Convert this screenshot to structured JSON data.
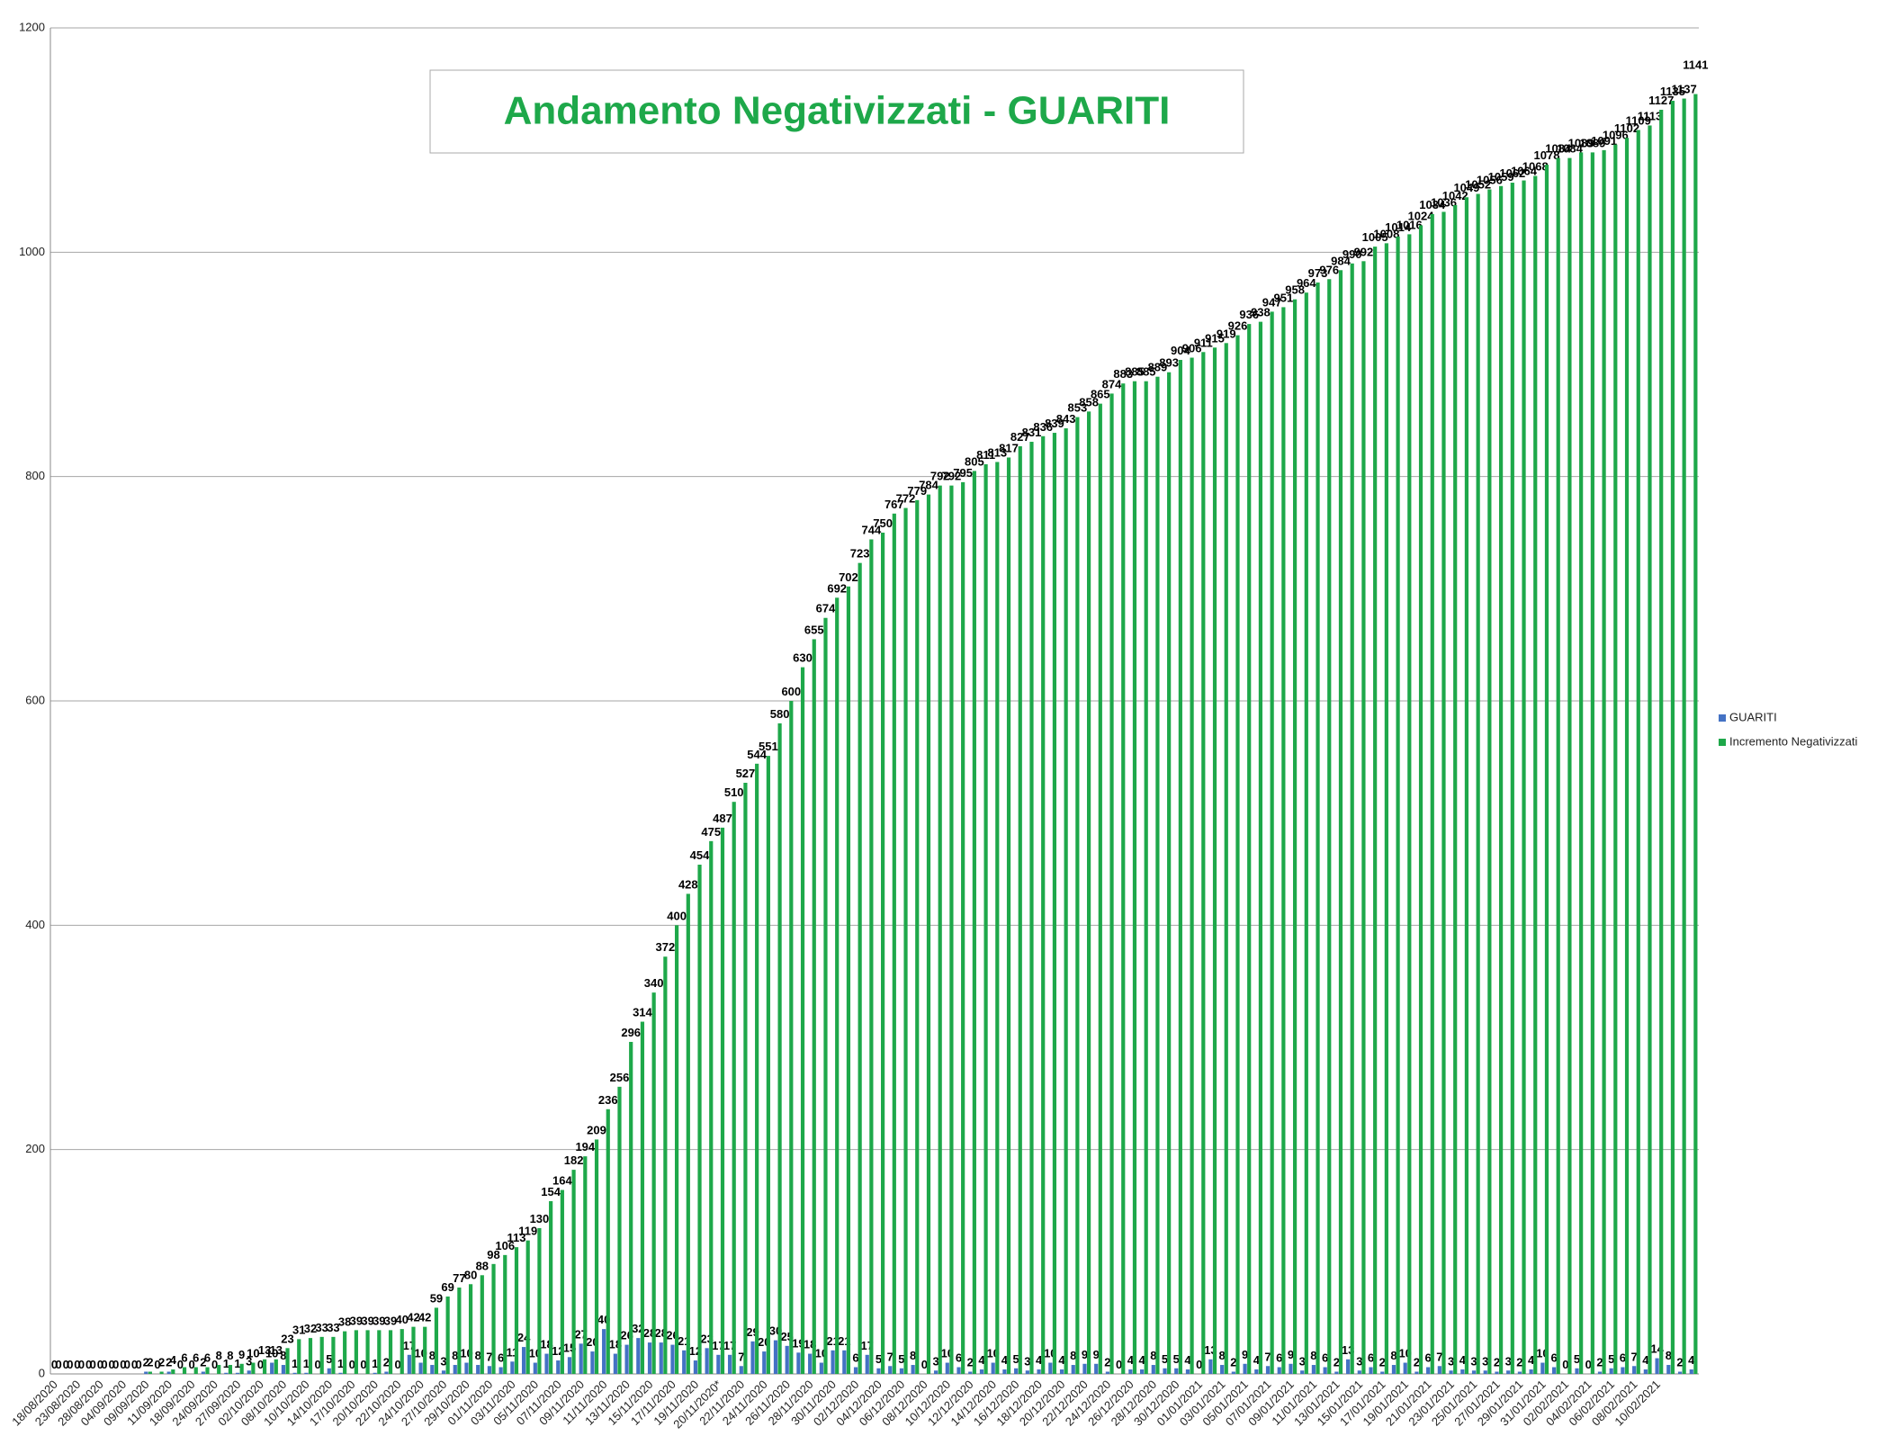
{
  "chart_data": {
    "type": "bar",
    "title": "Andamento Negativizzati - GUARITI",
    "categories": [
      "18/08/2020",
      null,
      "23/08/2020",
      null,
      "28/08/2020",
      null,
      "04/09/2020",
      null,
      "09/09/2020",
      null,
      "11/09/2020",
      null,
      "18/09/2020",
      null,
      "24/09/2020",
      null,
      "27/09/2020",
      null,
      "02/10/2020",
      null,
      "08/10/2020",
      null,
      "10/10/2020",
      null,
      "14/10/2020",
      null,
      "17/10/2020",
      null,
      "20/10/2020",
      null,
      "22/10/2020",
      null,
      "24/10/2020",
      null,
      "27/10/2020",
      null,
      "29/10/2020",
      null,
      "01/11/2020",
      null,
      "03/11/2020",
      null,
      "05/11/2020",
      null,
      "07/11/2020",
      null,
      "09/11/2020",
      null,
      "11/11/2020",
      null,
      "13/11/2020",
      null,
      "15/11/2020",
      null,
      "17/11/2020",
      null,
      "19/11/2020",
      null,
      "20/11/2020*",
      null,
      "22/11/2020",
      null,
      "24/11/2020",
      null,
      "26/11/2020",
      null,
      "28/11/2020",
      null,
      "30/11/2020",
      null,
      "02/12/2020",
      null,
      "04/12/2020",
      null,
      "06/12/2020",
      null,
      "08/12/2020",
      null,
      "10/12/2020",
      null,
      "12/12/2020",
      null,
      "14/12/2020",
      null,
      "16/12/2020",
      null,
      "18/12/2020",
      null,
      "20/12/2020",
      null,
      "22/12/2020",
      null,
      "24/12/2020",
      null,
      "26/12/2020",
      null,
      "28/12/2020",
      null,
      "30/12/2020",
      null,
      "01/01/2021",
      null,
      "03/01/2021",
      null,
      "05/01/2021",
      null,
      "07/01/2021",
      null,
      "09/01/2021",
      null,
      "11/01/2021",
      null,
      "13/01/2021",
      null,
      "15/01/2021",
      null,
      "17/01/2021",
      null,
      "19/01/2021",
      null,
      "21/01/2021",
      null,
      "23/01/2021",
      null,
      "25/01/2021",
      null,
      "27/01/2021",
      null,
      "29/01/2021",
      null,
      "31/01/2021",
      null,
      "02/02/2021",
      null,
      "04/02/2021",
      null,
      "06/02/2021",
      null,
      "08/02/2021",
      null,
      "10/02/2021",
      null,
      null,
      null
    ],
    "series": [
      {
        "name": "GUARITI",
        "color": "#4472c4",
        "values": [
          0,
          0,
          0,
          0,
          0,
          0,
          0,
          0,
          2,
          0,
          2,
          0,
          0,
          2,
          0,
          1,
          1,
          3,
          0,
          10,
          8,
          1,
          1,
          0,
          5,
          1,
          0,
          0,
          1,
          2,
          0,
          17,
          10,
          8,
          3,
          8,
          10,
          8,
          7,
          6,
          11,
          24,
          10,
          18,
          12,
          15,
          27,
          20,
          40,
          18,
          26,
          32,
          28,
          28,
          26,
          21,
          12,
          23,
          17,
          17,
          7,
          29,
          20,
          30,
          25,
          19,
          18,
          10,
          21,
          21,
          6,
          17,
          5,
          7,
          5,
          8,
          0,
          3,
          10,
          6,
          2,
          4,
          10,
          4,
          5,
          3,
          4,
          10,
          4,
          8,
          9,
          9,
          2,
          0,
          4,
          4,
          8,
          5,
          5,
          4,
          0,
          13,
          8,
          2,
          9,
          4,
          7,
          6,
          9,
          3,
          8,
          6,
          2,
          13,
          3,
          6,
          2,
          8,
          10,
          2,
          6,
          7,
          3,
          4,
          3,
          3,
          2,
          3,
          2,
          4,
          10,
          6,
          0,
          5,
          0,
          2,
          5,
          6,
          7,
          4,
          14,
          8,
          2,
          4
        ]
      },
      {
        "name": "Incremento Negativizzati",
        "color": "#1ea84a",
        "values": [
          0,
          0,
          0,
          0,
          0,
          0,
          0,
          0,
          2,
          2,
          4,
          6,
          6,
          6,
          8,
          8,
          9,
          10,
          13,
          13,
          23,
          31,
          32,
          33,
          33,
          38,
          39,
          39,
          39,
          39,
          40,
          42,
          42,
          59,
          69,
          77,
          80,
          88,
          98,
          106,
          113,
          119,
          130,
          154,
          164,
          182,
          194,
          209,
          236,
          256,
          296,
          314,
          340,
          372,
          400,
          428,
          454,
          475,
          487,
          510,
          527,
          544,
          551,
          580,
          600,
          630,
          655,
          674,
          692,
          702,
          723,
          744,
          750,
          767,
          772,
          779,
          784,
          792,
          792,
          795,
          805,
          811,
          813,
          817,
          827,
          831,
          836,
          839,
          843,
          853,
          858,
          865,
          874,
          883,
          885,
          885,
          889,
          893,
          904,
          906,
          911,
          915,
          919,
          926,
          936,
          938,
          947,
          951,
          958,
          964,
          973,
          976,
          984,
          990,
          992,
          1005,
          1008,
          1014,
          1016,
          1024,
          1034,
          1036,
          1042,
          1049,
          1052,
          1056,
          1059,
          1062,
          1064,
          1068,
          1078,
          1084,
          1084,
          1089,
          1089,
          1091,
          1096,
          1102,
          1109,
          1113,
          1127,
          1135,
          1137,
          1141
        ]
      }
    ],
    "ylim": [
      0,
      1200
    ],
    "yticks": [
      0,
      200,
      400,
      600,
      800,
      1000,
      1200
    ],
    "grid": true,
    "legend": "right"
  }
}
